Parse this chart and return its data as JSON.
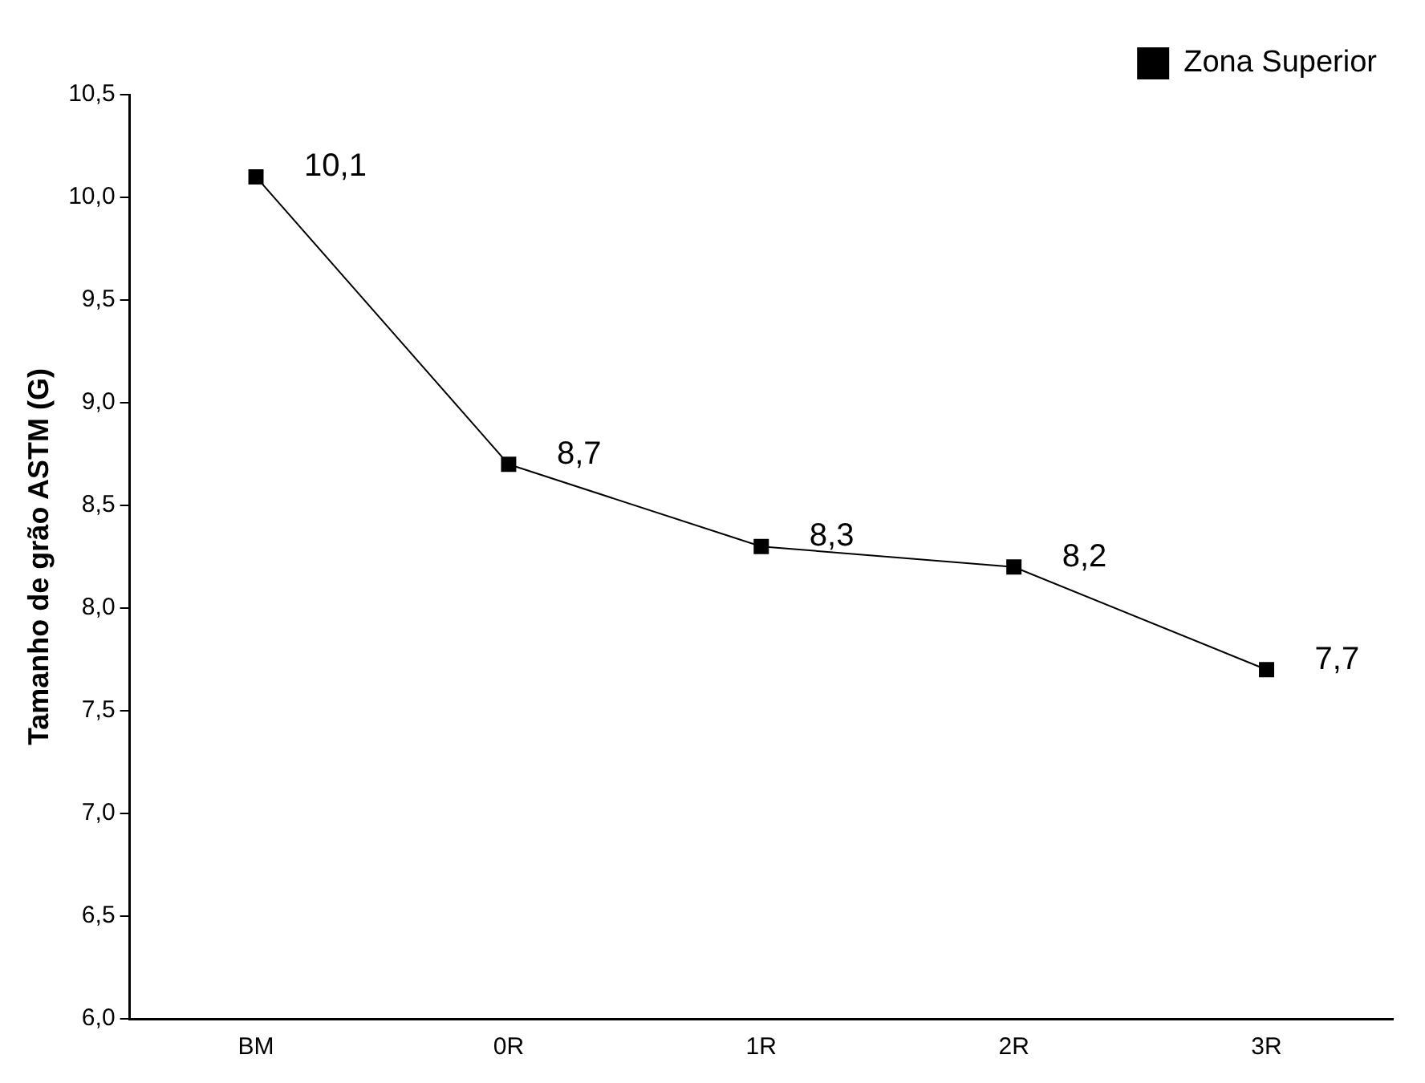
{
  "chart_data": {
    "type": "line",
    "ylabel": "Tamanho de grão ASTM (G)",
    "categories": [
      "BM",
      "0R",
      "1R",
      "2R",
      "3R"
    ],
    "series": [
      {
        "name": "Zona Superior",
        "color": "#000000",
        "values": [
          10.1,
          8.7,
          8.3,
          8.2,
          7.7
        ],
        "value_labels": [
          "10,1",
          "8,7",
          "8,3",
          "8,2",
          "7,7"
        ]
      }
    ],
    "ylim": [
      6.0,
      10.5
    ],
    "yticks": [
      {
        "value": 6.0,
        "label": "6,0"
      },
      {
        "value": 6.5,
        "label": "6,5"
      },
      {
        "value": 7.0,
        "label": "7,0"
      },
      {
        "value": 7.5,
        "label": "7,5"
      },
      {
        "value": 8.0,
        "label": "8,0"
      },
      {
        "value": 8.5,
        "label": "8,5"
      },
      {
        "value": 9.0,
        "label": "9,0"
      },
      {
        "value": 9.5,
        "label": "9,5"
      },
      {
        "value": 10.0,
        "label": "10,0"
      },
      {
        "value": 10.5,
        "label": "10,5"
      }
    ],
    "grid": false,
    "legend": "top right",
    "marker": "square",
    "line_style": "solid"
  }
}
